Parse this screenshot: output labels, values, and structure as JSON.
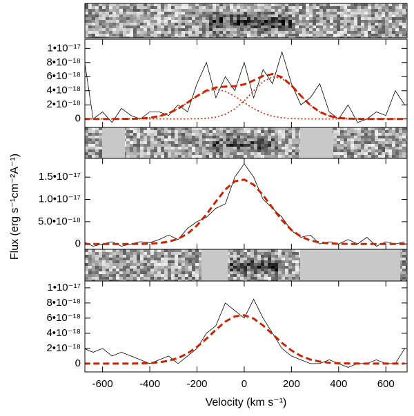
{
  "chart_data": [
    {
      "type": "line",
      "x": [
        -680,
        -640,
        -600,
        -560,
        -520,
        -480,
        -440,
        -400,
        -360,
        -320,
        -280,
        -240,
        -200,
        -160,
        -120,
        -80,
        -40,
        0,
        40,
        80,
        120,
        160,
        200,
        240,
        280,
        320,
        360,
        400,
        440,
        480,
        520,
        560,
        600,
        640,
        680
      ],
      "xlim": [
        -675,
        690
      ],
      "xticks": [
        -600,
        -400,
        -200,
        0,
        200,
        400,
        600
      ],
      "ylim": [
        -1.2e-18,
        1.13e-17
      ],
      "yticks": [
        0,
        {
          "value": 2e-18,
          "label": "2•10⁻¹⁸"
        },
        {
          "value": 4e-18,
          "label": "4•10⁻¹⁸"
        },
        {
          "value": 6e-18,
          "label": "6•10⁻¹⁸"
        },
        {
          "value": 8e-18,
          "label": "8•10⁻¹⁸"
        },
        {
          "value": 1e-17,
          "label": "1•10⁻¹⁷"
        }
      ],
      "series": [
        {
          "color": "#000000",
          "style": "solid",
          "values": [
            9e-18,
            0,
            1e-18,
            -5e-19,
            1.5e-18,
            5e-19,
            0,
            1e-18,
            1e-18,
            5e-19,
            2e-18,
            1e-18,
            5e-18,
            8e-18,
            3e-18,
            6e-18,
            4e-18,
            8e-18,
            3e-18,
            7e-18,
            5e-18,
            9.5e-18,
            5e-18,
            2e-18,
            3e-18,
            5e-18,
            1e-18,
            0,
            2e-18,
            -5e-19,
            0,
            1e-18,
            5e-19,
            4e-18,
            2e-18
          ]
        },
        {
          "color": "#cc2200",
          "style": "dashed",
          "values": [
            0,
            0,
            0,
            0,
            1e-20,
            2e-20,
            6e-20,
            1.7e-19,
            3.9e-19,
            8.1e-19,
            1.46e-18,
            2.33e-18,
            3.25e-18,
            4.02e-18,
            4.46e-18,
            4.59e-18,
            4.64e-18,
            4.9e-18,
            5.46e-18,
            6.1e-18,
            6.36e-18,
            5.91e-18,
            4.75e-18,
            3.29e-18,
            1.96e-18,
            9.9e-19,
            4.3e-19,
            1.6e-19,
            5e-20,
            1e-20,
            0,
            0,
            0,
            0,
            0
          ]
        },
        {
          "color": "#cc2200",
          "style": "dotted",
          "values": [
            0,
            0,
            0,
            0,
            1e-20,
            2e-20,
            6e-20,
            1.7e-19,
            3.9e-19,
            8.1e-19,
            1.46e-18,
            2.32e-18,
            3.22e-18,
            3.93e-18,
            4.2e-18,
            3.93e-18,
            3.22e-18,
            2.32e-18,
            1.46e-18,
            8.1e-19,
            3.9e-19,
            1.7e-19,
            6e-20,
            2e-20,
            1e-20,
            0,
            0,
            0,
            0,
            0,
            0,
            0,
            0,
            0,
            0
          ]
        },
        {
          "color": "#cc2200",
          "style": "dotted",
          "values": [
            0,
            0,
            0,
            0,
            0,
            0,
            0,
            0,
            0,
            0,
            0,
            1e-20,
            3e-20,
            9e-20,
            2.6e-19,
            6.6e-19,
            1.42e-18,
            2.58e-18,
            4e-18,
            5.29e-18,
            5.97e-18,
            5.74e-18,
            4.69e-18,
            3.27e-18,
            1.95e-18,
            9.9e-19,
            4.3e-19,
            1.6e-19,
            5e-20,
            1e-20,
            0,
            0,
            0,
            0,
            0
          ]
        }
      ]
    },
    {
      "type": "line",
      "ylabel": "Flux (erg s⁻¹cm⁻²A⁻¹)",
      "x": [
        -680,
        -640,
        -600,
        -560,
        -520,
        -480,
        -440,
        -400,
        -360,
        -320,
        -280,
        -240,
        -200,
        -160,
        -120,
        -80,
        -40,
        0,
        40,
        80,
        120,
        160,
        200,
        240,
        280,
        320,
        360,
        400,
        440,
        480,
        520,
        560,
        600,
        640,
        680
      ],
      "xlim": [
        -675,
        690
      ],
      "xticks": [
        -600,
        -400,
        -200,
        0,
        200,
        400,
        600
      ],
      "ylim": [
        -1.2e-18,
        1.92e-17
      ],
      "yticks": [
        0,
        {
          "value": 5e-18,
          "label": "5.0•10⁻¹⁸"
        },
        {
          "value": 1e-17,
          "label": "1.0•10⁻¹⁷"
        },
        {
          "value": 1.5e-17,
          "label": "1.5•10⁻¹⁷"
        }
      ],
      "series": [
        {
          "color": "#000000",
          "style": "solid",
          "values": [
            5e-19,
            -5e-19,
            0,
            5e-19,
            -5e-19,
            0,
            5e-19,
            3e-19,
            1e-18,
            2e-18,
            1e-18,
            3.5e-18,
            5e-18,
            6e-18,
            8e-18,
            9e-18,
            1.5e-17,
            1.8e-17,
            1.5e-17,
            1e-17,
            8e-18,
            6e-18,
            3e-18,
            1.5e-18,
            2e-18,
            0,
            5e-19,
            0,
            1e-18,
            0,
            1.5e-18,
            -5e-19,
            5e-19,
            0,
            5e-19
          ]
        },
        {
          "color": "#cc2200",
          "style": "dashed",
          "values": [
            0,
            0,
            0,
            0,
            0,
            0,
            2e-20,
            7e-20,
            2.1e-19,
            5.1e-19,
            1.16e-18,
            2.31e-18,
            4.15e-18,
            6.64e-18,
            9.52e-18,
            1.223e-17,
            1.405e-17,
            1.445e-17,
            1.329e-17,
            1.095e-17,
            8.08e-18,
            5.33e-18,
            3.14e-18,
            1.66e-18,
            7.8e-19,
            3.3e-19,
            1.3e-19,
            4e-20,
            1e-20,
            0,
            0,
            0,
            0,
            0,
            0
          ]
        }
      ]
    },
    {
      "type": "line",
      "xlabel": "Velocity (km s⁻¹)",
      "x": [
        -680,
        -640,
        -600,
        -560,
        -520,
        -480,
        -440,
        -400,
        -360,
        -320,
        -280,
        -240,
        -200,
        -160,
        -120,
        -80,
        -40,
        0,
        40,
        80,
        120,
        160,
        200,
        240,
        280,
        320,
        360,
        400,
        440,
        480,
        520,
        560,
        600,
        640,
        680
      ],
      "xlim": [
        -675,
        690
      ],
      "xticks": [
        -600,
        -400,
        -200,
        0,
        200,
        400,
        600
      ],
      "ylim": [
        -1.1e-18,
        1.09e-17
      ],
      "yticks": [
        0,
        {
          "value": 2e-18,
          "label": "2•10⁻¹⁸"
        },
        {
          "value": 4e-18,
          "label": "4•10⁻¹⁸"
        },
        {
          "value": 6e-18,
          "label": "6•10⁻¹⁸"
        },
        {
          "value": 8e-18,
          "label": "8•10⁻¹⁸"
        },
        {
          "value": 1e-17,
          "label": "1•10⁻¹⁷"
        }
      ],
      "series": [
        {
          "color": "#000000",
          "style": "solid",
          "values": [
            2e-18,
            1.5e-18,
            2e-18,
            1e-18,
            1.5e-18,
            1e-18,
            5e-19,
            0,
            5e-19,
            1e-18,
            0,
            1e-18,
            2e-18,
            4e-18,
            5e-18,
            8e-18,
            7e-18,
            6e-18,
            8.5e-18,
            6e-18,
            4e-18,
            2e-18,
            1e-18,
            5e-19,
            0,
            0,
            5e-19,
            0,
            -5e-19,
            0,
            0,
            5e-19,
            0,
            0,
            2e-18
          ]
        },
        {
          "color": "#cc2200",
          "style": "dashed",
          "values": [
            0,
            0,
            0,
            0,
            0,
            0,
            3e-20,
            7e-20,
            1.7e-19,
            3.7e-19,
            7.4e-19,
            1.34e-18,
            2.2e-18,
            3.28e-18,
            4.47e-18,
            5.54e-18,
            6.23e-18,
            6.38e-18,
            5.94e-18,
            5.03e-18,
            3.88e-18,
            2.73e-18,
            1.74e-18,
            1.01e-18,
            5.3e-19,
            2.6e-19,
            1.1e-19,
            4e-20,
            2e-20,
            1e-20,
            0,
            0,
            0,
            0,
            0
          ]
        }
      ]
    }
  ]
}
